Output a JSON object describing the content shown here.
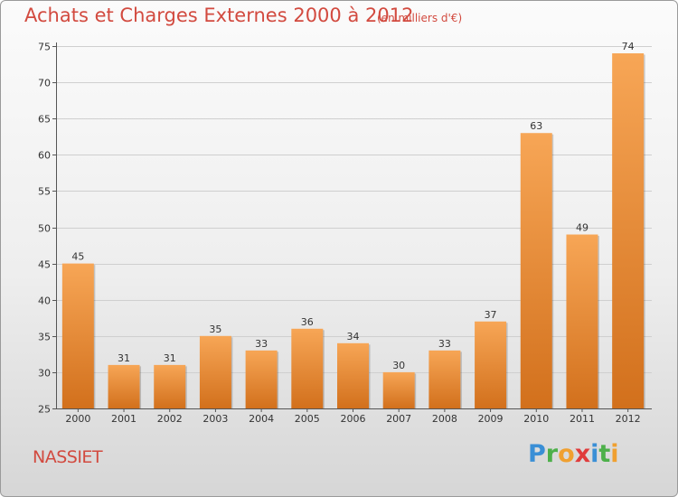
{
  "title": "Achats et Charges Externes 2000 à 2012",
  "unit_note": "(en milliers d'€)",
  "commune": "NASSIET",
  "logo": {
    "letters": [
      "P",
      "r",
      "o",
      "x",
      "i",
      "t",
      "i"
    ],
    "colors": [
      "#3a8fd6",
      "#4db04a",
      "#f0a030",
      "#e03c3c",
      "#3a8fd6",
      "#4db04a",
      "#f0a030"
    ]
  },
  "colors": {
    "bar_top": "#f7a656",
    "bar_bottom": "#d2701c",
    "title": "#d24a3f"
  },
  "chart_data": {
    "type": "bar",
    "categories": [
      "2000",
      "2001",
      "2002",
      "2003",
      "2004",
      "2005",
      "2006",
      "2007",
      "2008",
      "2009",
      "2010",
      "2011",
      "2012"
    ],
    "values": [
      45,
      31,
      31,
      35,
      33,
      36,
      34,
      30,
      33,
      37,
      63,
      49,
      74
    ],
    "ylim": [
      25,
      75
    ],
    "yticks": [
      25,
      30,
      35,
      40,
      45,
      50,
      55,
      60,
      65,
      70,
      75
    ],
    "grid": true
  }
}
